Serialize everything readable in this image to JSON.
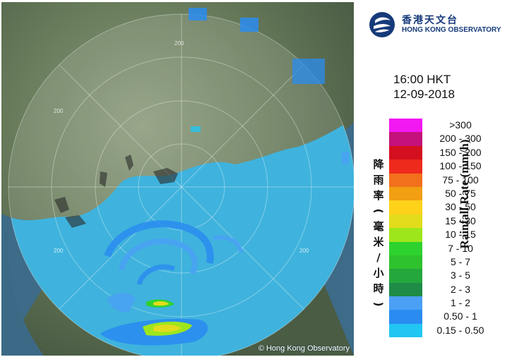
{
  "header": {
    "org_name_zh": "香港天文台",
    "org_name_en": "HONG KONG OBSERVATORY",
    "time": "16:00 HKT",
    "date": "12-09-2018"
  },
  "legend": {
    "title_en": "Rainfall Rate (mm/h)",
    "title_zh": [
      "降",
      "雨",
      "率",
      "(",
      "毫",
      "米",
      "/",
      "小",
      "時",
      ")"
    ],
    "items": [
      {
        "label": ">300",
        "color": "#f218f2"
      },
      {
        "label": "200 - 300",
        "color": "#c4127a"
      },
      {
        "label": "150 - 200",
        "color": "#d40f1f"
      },
      {
        "label": "100 - 150",
        "color": "#ee2a1c"
      },
      {
        "label": "75 - 100",
        "color": "#f2701c"
      },
      {
        "label": "50 - 75",
        "color": "#f29f12"
      },
      {
        "label": "30 - 50",
        "color": "#ffd21a"
      },
      {
        "label": "15 - 30",
        "color": "#e2dc1c"
      },
      {
        "label": "10 - 15",
        "color": "#9ee61c"
      },
      {
        "label": "7 - 10",
        "color": "#2ed22e"
      },
      {
        "label": "5 - 7",
        "color": "#2ec22e"
      },
      {
        "label": "3 - 5",
        "color": "#24a83c"
      },
      {
        "label": "2 - 3",
        "color": "#1e8c46"
      },
      {
        "label": "1 - 2",
        "color": "#4aa0f5"
      },
      {
        "label": "0.50 - 1",
        "color": "#2a8cf0"
      },
      {
        "label": "0.15 - 0.50",
        "color": "#22c6f2"
      }
    ]
  },
  "map": {
    "range_labels": [
      "200",
      "200",
      "200",
      "200"
    ],
    "copyright": "© Hong Kong Observatory"
  }
}
